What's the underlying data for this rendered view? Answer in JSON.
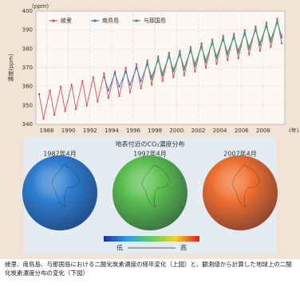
{
  "chart_data": {
    "type": "line",
    "y_unit": "(ppm)",
    "y_label": "濃度(ppm)",
    "x_unit": "(年)",
    "x": [
      1987.3,
      1987.7,
      1988.3,
      1988.7,
      1989.3,
      1989.7,
      1990.3,
      1990.7,
      1991.3,
      1991.7,
      1992.3,
      1992.7,
      1993.3,
      1993.7,
      1994.3,
      1994.7,
      1995.3,
      1995.7,
      1996.3,
      1996.7,
      1997.3,
      1997.7,
      1998.3,
      1998.7,
      1999.3,
      1999.7,
      2000.3,
      2000.7,
      2001.3,
      2001.7,
      2002.3,
      2002.7,
      2003.3,
      2003.7,
      2004.3,
      2004.7,
      2005.3,
      2005.7,
      2006.3,
      2006.7,
      2007.3,
      2007.7,
      2008.3,
      2008.7,
      2009.3,
      2009.7
    ],
    "series": [
      {
        "name": "綾里",
        "color": "#e0505a",
        "values": [
          356,
          343,
          358,
          345,
          360,
          347,
          361,
          348,
          363,
          350,
          365,
          352,
          367,
          354,
          368,
          355,
          370,
          357,
          372,
          359,
          374,
          361,
          376,
          363,
          378,
          365,
          379,
          366,
          381,
          368,
          383,
          370,
          385,
          372,
          387,
          374,
          388,
          375,
          390,
          377,
          392,
          379,
          394,
          381,
          396,
          383
        ]
      },
      {
        "name": "南鳥島",
        "color": "#3a7fc0",
        "values": [
          null,
          null,
          null,
          null,
          null,
          null,
          null,
          null,
          null,
          null,
          null,
          null,
          365,
          358,
          367,
          360,
          368,
          361,
          370,
          363,
          372,
          365,
          374,
          367,
          376,
          369,
          377,
          370,
          379,
          372,
          381,
          374,
          383,
          376,
          385,
          378,
          386,
          379,
          388,
          381,
          390,
          383,
          392,
          385,
          394,
          387
        ]
      },
      {
        "name": "与那国島",
        "color": "#3aa070",
        "values": [
          null,
          null,
          null,
          null,
          null,
          null,
          null,
          null,
          null,
          null,
          null,
          null,
          null,
          null,
          null,
          null,
          null,
          null,
          null,
          null,
          373,
          364,
          375,
          366,
          377,
          368,
          378,
          369,
          380,
          371,
          382,
          373,
          384,
          375,
          386,
          377,
          387,
          378,
          389,
          380,
          391,
          382,
          393,
          384,
          395,
          386
        ]
      }
    ],
    "xlim": [
      1987,
      2010
    ],
    "xticks": [
      1988,
      1990,
      1992,
      1994,
      1996,
      1998,
      2000,
      2002,
      2004,
      2006,
      2008
    ],
    "ylim": [
      340,
      400
    ],
    "yticks": [
      340,
      350,
      360,
      370,
      380,
      390,
      400
    ],
    "grid": true
  },
  "maps": {
    "title": "地表付近のCO₂濃度分布",
    "globes": [
      {
        "label": "1987年4月",
        "color": "#2f7fd0"
      },
      {
        "label": "1997年4月",
        "color": "#5cc050"
      },
      {
        "label": "2007年4月",
        "color": "#f07030"
      }
    ],
    "scale_low": "低",
    "scale_high": "高"
  },
  "caption": "綾里、南鳥島、与那国島における二酸化炭素濃度の経年変化（上図）と、観測値から計算した地球上の二酸化炭素濃度分布の変化（下図）"
}
